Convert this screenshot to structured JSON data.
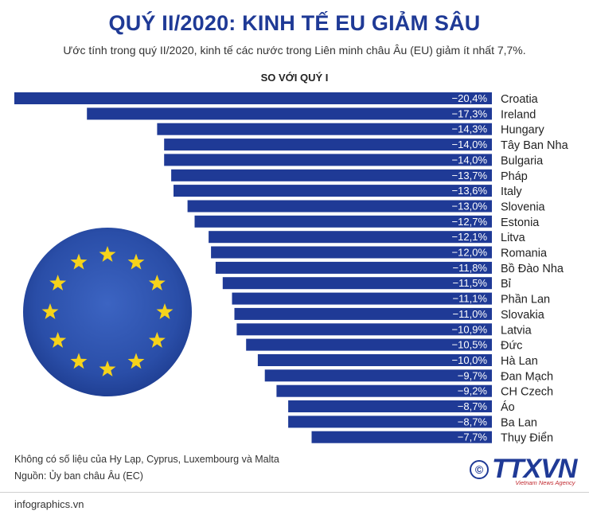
{
  "title": "QUÝ II/2020: KINH TẾ EU GIẢM SÂU",
  "subtitle": "Ước tính trong quý II/2020, kinh tế các nước trong Liên minh châu Âu (EU) giảm ít nhất 7,7%.",
  "section_label": "SO VỚI QUÝ I",
  "note": "Không có số liệu của Hy Lạp, Cyprus, Luxembourg và Malta",
  "source": "Nguồn: Ủy ban châu Âu (EC)",
  "footer": "infographics.vn",
  "logo": {
    "text": "TTXVN",
    "tagline": "Vietnam News Agency",
    "symbol": "©"
  },
  "colors": {
    "bar": "#1f3a96",
    "title": "#1f3a96",
    "flag": "#2f55b0",
    "star": "#f6d31b"
  },
  "icons": [
    "eu-flag-icon",
    "copyright-icon"
  ],
  "chart_data": {
    "type": "bar",
    "orientation": "horizontal",
    "title": "SO VỚI QUÝ I",
    "categories": [
      "Croatia",
      "Ireland",
      "Hungary",
      "Tây Ban Nha",
      "Bulgaria",
      "Pháp",
      "Italy",
      "Slovenia",
      "Estonia",
      "Litva",
      "Romania",
      "Bồ Đào Nha",
      "Bỉ",
      "Phần Lan",
      "Slovakia",
      "Latvia",
      "Đức",
      "Hà Lan",
      "Đan Mạch",
      "CH Czech",
      "Áo",
      "Ba Lan",
      "Thụy Điển"
    ],
    "values": [
      -20.4,
      -17.3,
      -14.3,
      -14.0,
      -14.0,
      -13.7,
      -13.6,
      -13.0,
      -12.7,
      -12.1,
      -12.0,
      -11.8,
      -11.5,
      -11.1,
      -11.0,
      -10.9,
      -10.5,
      -10.0,
      -9.7,
      -9.2,
      -8.7,
      -8.7,
      -7.7
    ],
    "labels": [
      "−20,4%",
      "−17,3%",
      "−14,3%",
      "−14,0%",
      "−14,0%",
      "−13,7%",
      "−13,6%",
      "−13,0%",
      "−12,7%",
      "−12,1%",
      "−12,0%",
      "−11,8%",
      "−11,5%",
      "−11,1%",
      "−11,0%",
      "−10,9%",
      "−10,5%",
      "−10,0%",
      "−9,7%",
      "−9,2%",
      "−8,7%",
      "−8,7%",
      "−7,7%"
    ],
    "xlim": [
      -20.4,
      0
    ],
    "grid": false,
    "legend": "none"
  }
}
